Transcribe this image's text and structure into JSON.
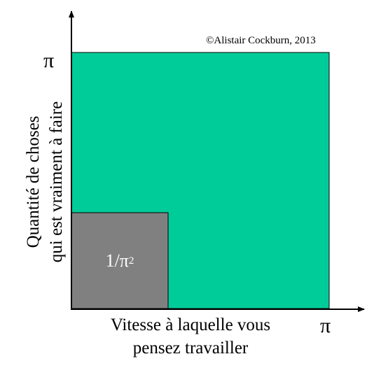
{
  "copyright": "©Alistair Cockburn, 2013",
  "y_axis": {
    "max_label": "π",
    "label_line1": "Quantité de choses",
    "label_line2": "qui est vraiment à faire"
  },
  "x_axis": {
    "max_label": "π",
    "label_line1": "Vitesse à laquelle vous",
    "label_line2": "pensez travailler"
  },
  "inner_box": {
    "label_base": "1/π",
    "label_exponent": "2"
  },
  "colors": {
    "outer_box": "#00cc99",
    "inner_box": "#808080",
    "axes": "#000000"
  }
}
